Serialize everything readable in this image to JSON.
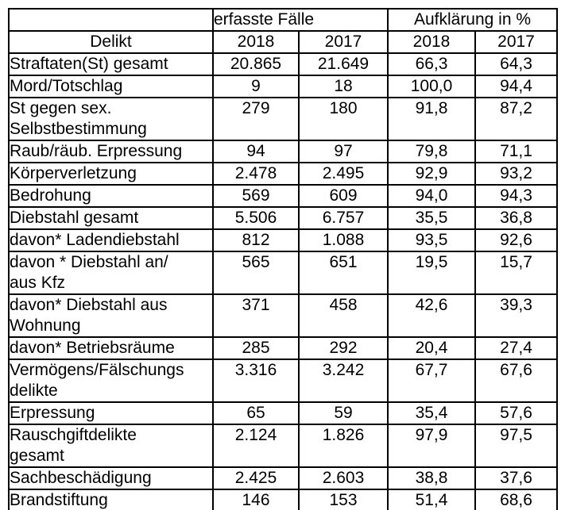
{
  "page": {
    "background_color": "#ffffff",
    "text_color": "#000000",
    "border_color": "#000000"
  },
  "table": {
    "group_headers": {
      "cases": "erfasste Fälle",
      "clearance": "Aufklärung in %"
    },
    "column_headers": {
      "delikt": "Delikt",
      "years": [
        "2018",
        "2017",
        "2018",
        "2017"
      ]
    },
    "rows": [
      {
        "delikt": "Straftaten(St) gesamt",
        "cases_2018": "20.865",
        "cases_2017": "21.649",
        "clearance_2018": "66,3",
        "clearance_2017": "64,3"
      },
      {
        "delikt": "Mord/Totschlag",
        "cases_2018": "9",
        "cases_2017": "18",
        "clearance_2018": "100,0",
        "clearance_2017": "94,4"
      },
      {
        "delikt": "St gegen sex.\nSelbstbestimmung",
        "cases_2018": "279",
        "cases_2017": "180",
        "clearance_2018": "91,8",
        "clearance_2017": "87,2"
      },
      {
        "delikt": "Raub/räub. Erpressung",
        "cases_2018": "94",
        "cases_2017": "97",
        "clearance_2018": "79,8",
        "clearance_2017": "71,1"
      },
      {
        "delikt": "Körperverletzung",
        "cases_2018": "2.478",
        "cases_2017": "2.495",
        "clearance_2018": "92,9",
        "clearance_2017": "93,2"
      },
      {
        "delikt": "Bedrohung",
        "cases_2018": "569",
        "cases_2017": "609",
        "clearance_2018": "94,0",
        "clearance_2017": "94,3"
      },
      {
        "delikt": "Diebstahl gesamt",
        "cases_2018": "5.506",
        "cases_2017": "6.757",
        "clearance_2018": "35,5",
        "clearance_2017": "36,8"
      },
      {
        "delikt": "davon* Ladendiebstahl",
        "cases_2018": "812",
        "cases_2017": "1.088",
        "clearance_2018": "93,5",
        "clearance_2017": "92,6"
      },
      {
        "delikt": "davon * Diebstahl an/\naus Kfz",
        "cases_2018": "565",
        "cases_2017": "651",
        "clearance_2018": "19,5",
        "clearance_2017": "15,7"
      },
      {
        "delikt": "davon* Diebstahl aus\nWohnung",
        "cases_2018": "371",
        "cases_2017": "458",
        "clearance_2018": "42,6",
        "clearance_2017": "39,3"
      },
      {
        "delikt": "davon* Betriebsräume",
        "cases_2018": "285",
        "cases_2017": "292",
        "clearance_2018": "20,4",
        "clearance_2017": "27,4"
      },
      {
        "delikt": "Vermögens/Fälschungs\ndelikte",
        "cases_2018": "3.316",
        "cases_2017": "3.242",
        "clearance_2018": "67,7",
        "clearance_2017": "67,6"
      },
      {
        "delikt": "Erpressung",
        "cases_2018": "65",
        "cases_2017": "59",
        "clearance_2018": "35,4",
        "clearance_2017": "57,6"
      },
      {
        "delikt": "Rauschgiftdelikte\ngesamt",
        "cases_2018": "2.124",
        "cases_2017": "1.826",
        "clearance_2018": "97,9",
        "clearance_2017": "97,5"
      },
      {
        "delikt": "Sachbeschädigung",
        "cases_2018": "2.425",
        "cases_2017": "2.603",
        "clearance_2018": "38,8",
        "clearance_2017": "37,6"
      },
      {
        "delikt": "Brandstiftung",
        "cases_2018": "146",
        "cases_2017": "153",
        "clearance_2018": "51,4",
        "clearance_2017": "68,6"
      }
    ]
  }
}
